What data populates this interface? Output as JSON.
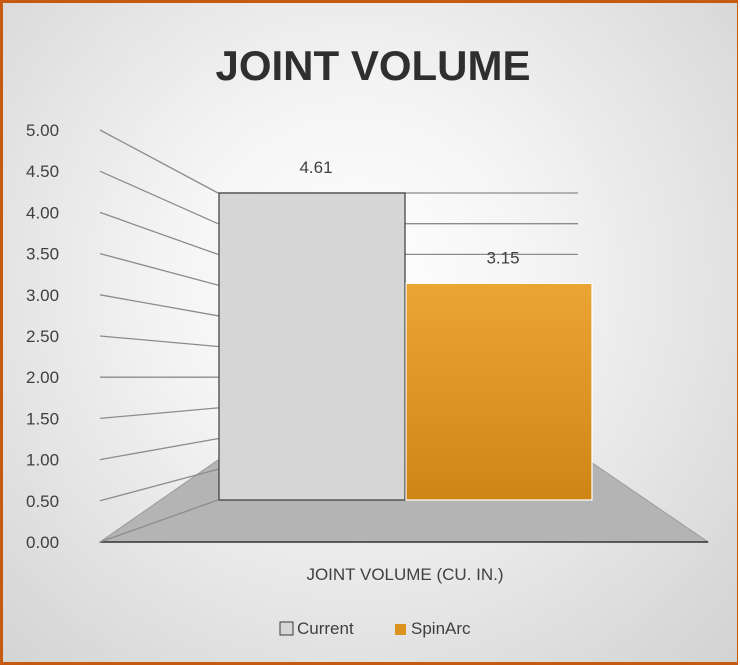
{
  "chart_data": {
    "type": "bar",
    "title": "JOINT VOLUME",
    "xlabel": "",
    "ylabel": "",
    "categories": [
      "JOINT VOLUME (CU. IN.)"
    ],
    "series": [
      {
        "name": "Current",
        "values": [
          4.61
        ]
      },
      {
        "name": "SpinArc",
        "values": [
          3.15
        ]
      }
    ],
    "ylim": [
      0,
      5
    ],
    "yticks": [
      "0.00",
      "0.50",
      "1.00",
      "1.50",
      "2.00",
      "2.50",
      "3.00",
      "3.50",
      "4.00",
      "4.50",
      "5.00"
    ],
    "data_labels": [
      "4.61",
      "3.15"
    ],
    "legend": "bottom",
    "grid": true,
    "colors": {
      "current_fill": "#d6d6d6",
      "current_stroke": "#3a3a3a",
      "spinarc_top": "#eba535",
      "spinarc_bottom": "#cf8515",
      "floor": "#b4b4b4",
      "gridline": "#8c8c8c",
      "frame": "#c55a11"
    }
  }
}
